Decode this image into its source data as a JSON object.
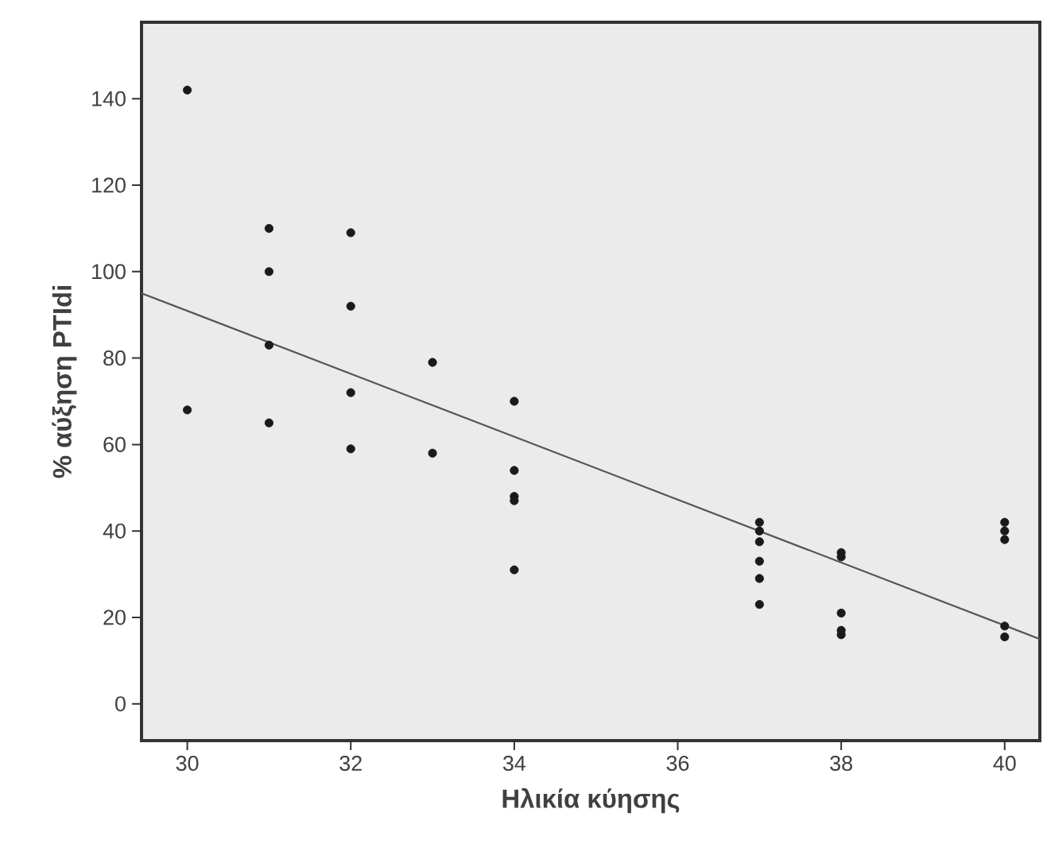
{
  "chart_data": {
    "type": "scatter",
    "xlabel": "Ηλικία κύησης",
    "ylabel": "% αύξηση PTIdi",
    "xlim": [
      29.44,
      40.43
    ],
    "ylim": [
      -8.5,
      157.7
    ],
    "xticks": [
      30,
      32,
      34,
      36,
      38,
      40
    ],
    "yticks": [
      0,
      20,
      40,
      60,
      80,
      100,
      120,
      140
    ],
    "grid": false,
    "marker": "circle",
    "series": [
      {
        "color": "#1a1a1a",
        "x": [
          30,
          30,
          31,
          31,
          31,
          31,
          32,
          32,
          32,
          32,
          33,
          33,
          34,
          34,
          34,
          34,
          34,
          37,
          37,
          37,
          37,
          37,
          37,
          38,
          38,
          38,
          38,
          38,
          40,
          40,
          40,
          40,
          40
        ],
        "values": [
          142,
          68,
          110,
          100,
          83,
          65,
          109,
          92,
          72,
          59,
          79,
          58,
          70,
          54,
          48,
          47,
          31,
          42,
          40,
          37.5,
          33,
          29,
          23,
          35,
          34,
          21,
          17,
          16,
          42,
          40,
          38,
          18,
          15.5
        ]
      },
      {
        "type": "line",
        "color": "#555555",
        "marker": "none",
        "line_style": "solid",
        "x": [
          29.44,
          40.43
        ],
        "values": [
          95,
          15
        ]
      }
    ]
  }
}
